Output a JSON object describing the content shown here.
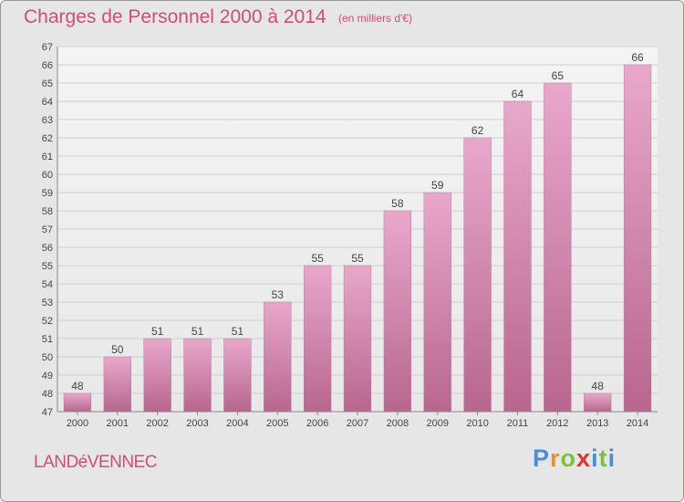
{
  "header": {
    "title": "Charges de Personnel 2000 à 2014",
    "unit_note": "(en milliers d'€)"
  },
  "footer": {
    "city": "LANDéVENNEC",
    "logo_text": "Proxiti"
  },
  "colors": {
    "title": "#cc4f7a",
    "bar_top": "#e8a8cb",
    "bar_bottom": "#b8668e",
    "background": "#e6e6e6",
    "logo": [
      "#4a90d9",
      "#f28c1e",
      "#7cc242",
      "#e0312e",
      "#4a90d9",
      "#7cc242",
      "#4a90d9"
    ]
  },
  "chart_data": {
    "type": "bar",
    "categories": [
      "2000",
      "2001",
      "2002",
      "2003",
      "2004",
      "2005",
      "2006",
      "2007",
      "2008",
      "2009",
      "2010",
      "2011",
      "2012",
      "2013",
      "2014"
    ],
    "values": [
      48,
      50,
      51,
      51,
      51,
      53,
      55,
      55,
      58,
      59,
      62,
      64,
      65,
      48,
      66
    ],
    "ylim": [
      47,
      67
    ],
    "yticks": [
      47,
      48,
      49,
      50,
      51,
      52,
      53,
      54,
      55,
      56,
      57,
      58,
      59,
      60,
      61,
      62,
      63,
      64,
      65,
      66,
      67
    ],
    "grid": true,
    "data_labels": true
  }
}
